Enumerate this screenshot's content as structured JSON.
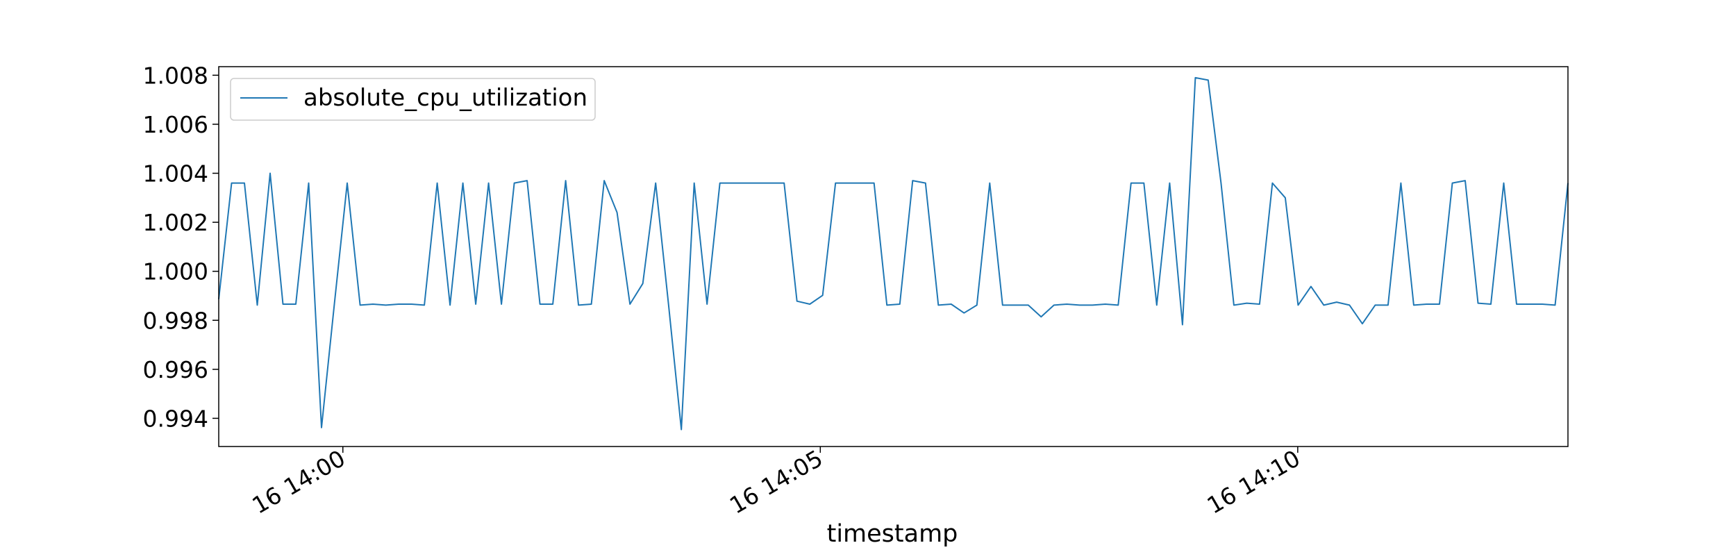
{
  "chart_data": {
    "type": "line",
    "xlabel": "timestamp",
    "ylabel": "",
    "title": "",
    "x_unit": "minutes after 14:00 on day 16",
    "xlim": [
      -1.3,
      12.83
    ],
    "ylim": [
      0.99285,
      1.00835
    ],
    "x_ticks": [
      {
        "value": 0,
        "label": "16 14:00"
      },
      {
        "value": 5,
        "label": "16 14:05"
      },
      {
        "value": 10,
        "label": "16 14:10"
      }
    ],
    "y_ticks": [
      {
        "value": 0.994,
        "label": "0.994"
      },
      {
        "value": 0.996,
        "label": "0.996"
      },
      {
        "value": 0.998,
        "label": "0.998"
      },
      {
        "value": 1.0,
        "label": "1.000"
      },
      {
        "value": 1.002,
        "label": "1.002"
      },
      {
        "value": 1.004,
        "label": "1.004"
      },
      {
        "value": 1.006,
        "label": "1.006"
      },
      {
        "value": 1.008,
        "label": "1.008"
      }
    ],
    "grid": false,
    "legend": {
      "position": "top-left"
    },
    "series": [
      {
        "name": "absolute_cpu_utilization",
        "color": "#1f77b4",
        "y": [
          0.99886,
          1.0036,
          1.0036,
          0.99862,
          1.004,
          0.99866,
          0.99866,
          1.0036,
          0.99362,
          0.99866,
          1.0036,
          0.99862,
          0.99866,
          0.99862,
          0.99866,
          0.99866,
          0.99862,
          1.0036,
          0.99862,
          1.0036,
          0.99866,
          1.0036,
          0.99866,
          1.0036,
          1.0037,
          0.99866,
          0.99866,
          1.0037,
          0.99862,
          0.99866,
          1.0037,
          1.0024,
          0.99866,
          0.9995,
          1.0036,
          0.99866,
          0.99354,
          1.0036,
          0.99866,
          1.0036,
          1.0036,
          1.0036,
          1.0036,
          1.0036,
          1.0036,
          0.99878,
          0.99866,
          0.99902,
          1.0036,
          1.0036,
          1.0036,
          1.0036,
          0.99862,
          0.99866,
          1.0037,
          1.0036,
          0.99862,
          0.99866,
          0.9983,
          0.99862,
          1.0036,
          0.99862,
          0.99862,
          0.99862,
          0.99814,
          0.99862,
          0.99866,
          0.99862,
          0.99862,
          0.99866,
          0.99862,
          1.0036,
          1.0036,
          0.99862,
          1.0036,
          0.99782,
          1.0079,
          1.0078,
          1.0036,
          0.99862,
          0.9987,
          0.99866,
          1.0036,
          1.003,
          0.99862,
          0.99938,
          0.99862,
          0.99874,
          0.99862,
          0.99786,
          0.99862,
          0.99862,
          1.0036,
          0.99862,
          0.99866,
          0.99866,
          1.0036,
          1.0037,
          0.9987,
          0.99866,
          1.0036,
          0.99866,
          0.99866,
          0.99866,
          0.99862,
          1.0036
        ]
      }
    ]
  }
}
